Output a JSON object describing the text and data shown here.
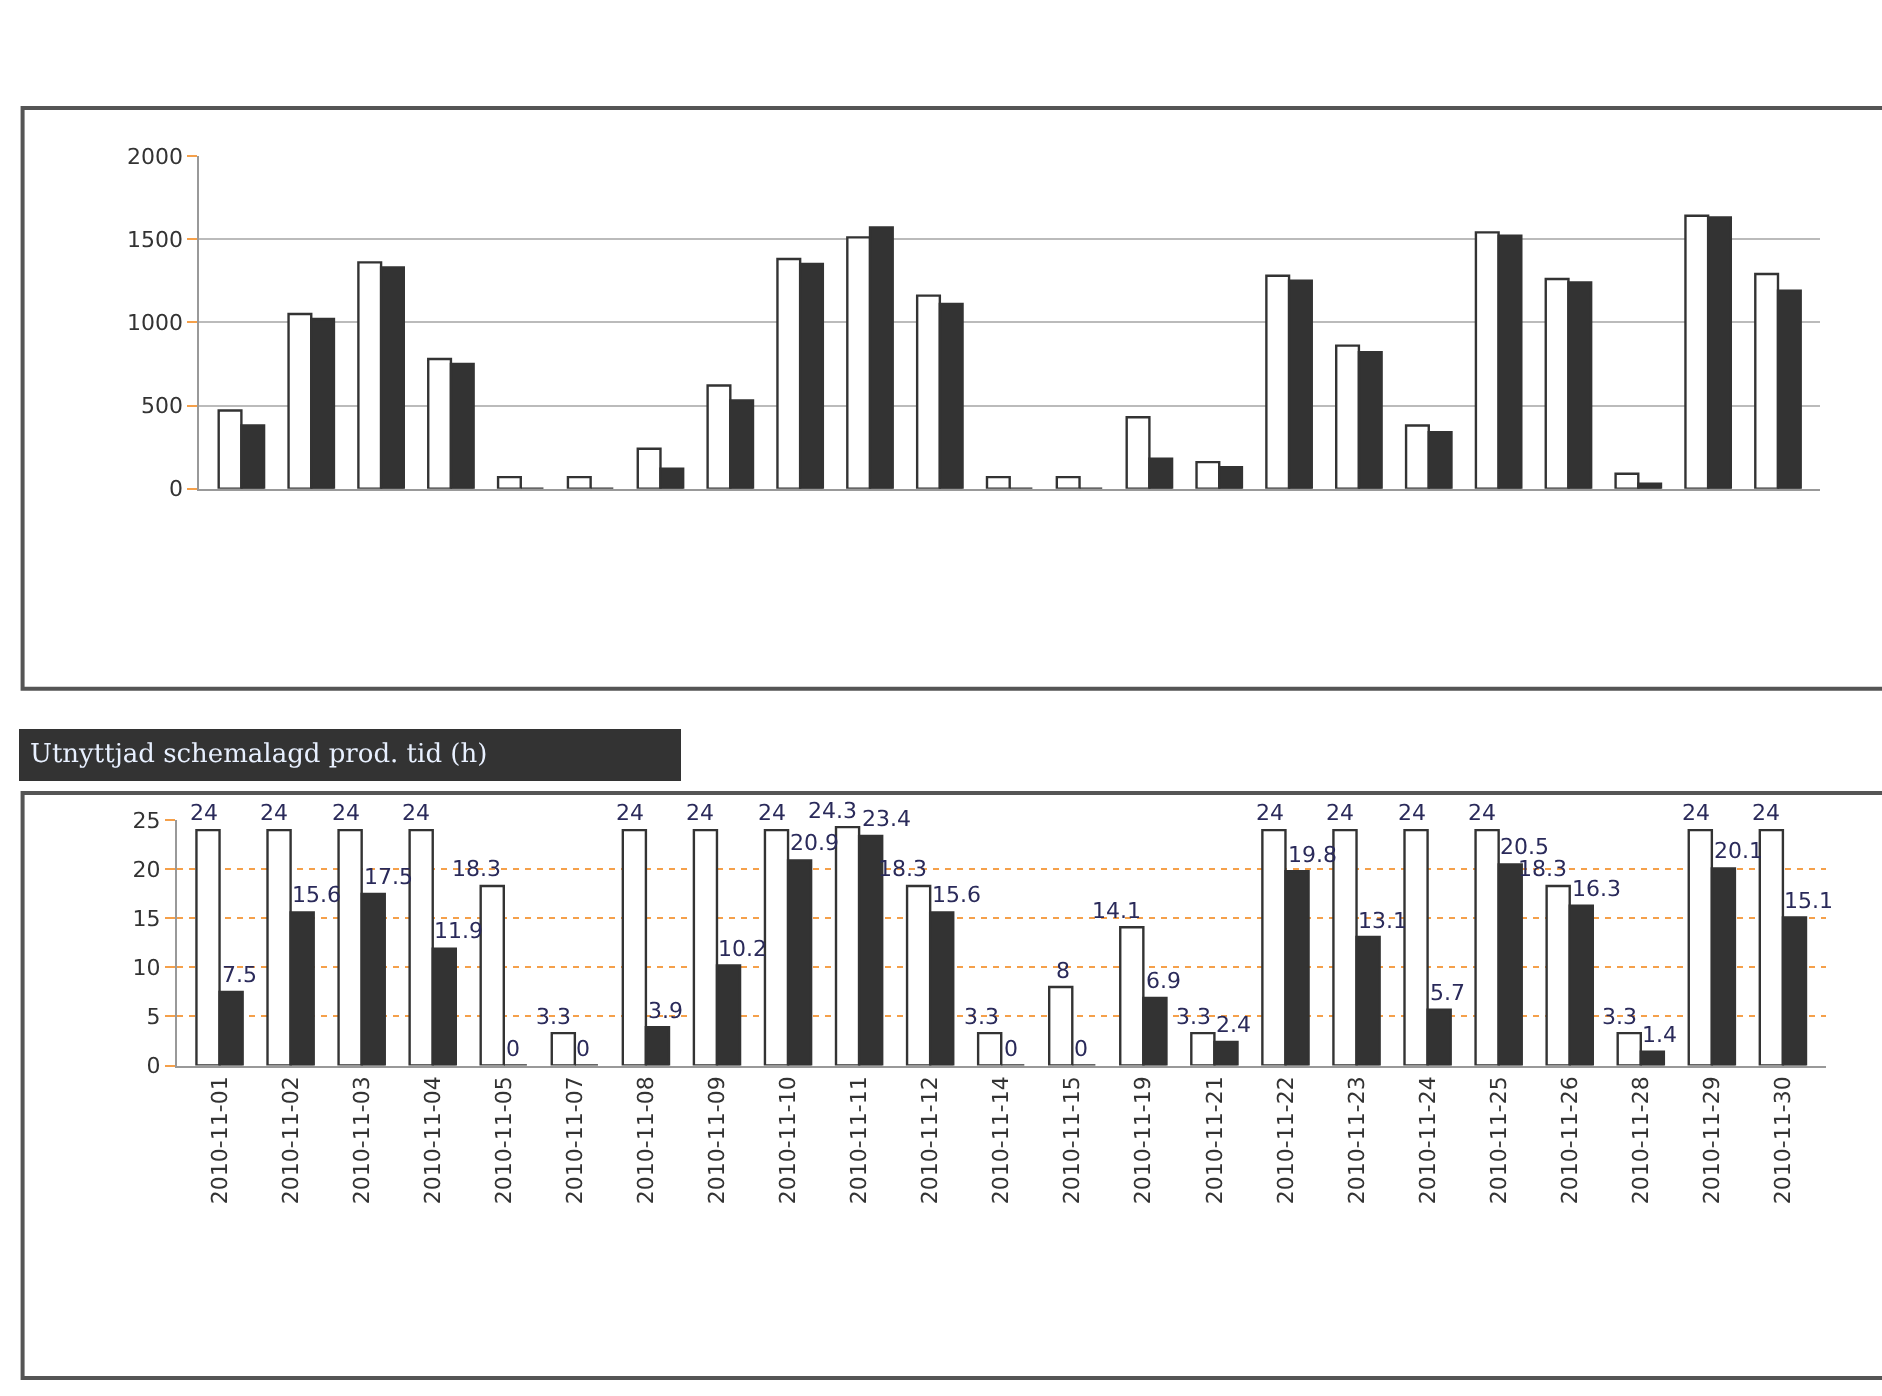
{
  "chart_data": [
    {
      "type": "bar",
      "categories": [
        null,
        null,
        null,
        null,
        null,
        null,
        null,
        null,
        null,
        null,
        null,
        null,
        null,
        null,
        null,
        null,
        null,
        null,
        null,
        null,
        null,
        null,
        null
      ],
      "series": [
        {
          "color": "#ffffff",
          "values": [
            470,
            1050,
            1360,
            780,
            70,
            70,
            240,
            620,
            1380,
            1510,
            1160,
            70,
            70,
            430,
            160,
            1280,
            860,
            380,
            1540,
            1260,
            90,
            1640,
            1290
          ]
        },
        {
          "color": "#333333",
          "values": [
            380,
            1020,
            1330,
            750,
            0,
            0,
            120,
            530,
            1350,
            1570,
            1110,
            0,
            0,
            180,
            130,
            1250,
            820,
            340,
            1520,
            1240,
            30,
            1630,
            1190
          ]
        }
      ],
      "ylim": [
        0,
        2000
      ],
      "yticks": [
        0,
        500,
        1000,
        1500,
        2000
      ],
      "grid": "y",
      "tick_labels": "y"
    },
    {
      "type": "bar",
      "title": "Utnyttjad schemalagd prod. tid (h)",
      "categories": [
        "2010-11-01",
        "2010-11-02",
        "2010-11-03",
        "2010-11-04",
        "2010-11-05",
        "2010-11-07",
        "2010-11-08",
        "2010-11-09",
        "2010-11-10",
        "2010-11-11",
        "2010-11-12",
        "2010-11-14",
        "2010-11-15",
        "2010-11-19",
        "2010-11-21",
        "2010-11-22",
        "2010-11-23",
        "2010-11-24",
        "2010-11-25",
        "2010-11-26",
        "2010-11-28",
        "2010-11-29",
        "2010-11-30"
      ],
      "series": [
        {
          "color": "#ffffff",
          "values": [
            24,
            24,
            24,
            24,
            18.3,
            3.3,
            24,
            24,
            24,
            24.3,
            18.3,
            3.3,
            8,
            14.1,
            3.3,
            24,
            24,
            24,
            24,
            18.3,
            3.3,
            24,
            24
          ]
        },
        {
          "color": "#333333",
          "values": [
            7.5,
            15.6,
            17.5,
            11.9,
            0,
            0,
            3.9,
            10.2,
            20.9,
            23.4,
            15.6,
            0,
            0,
            6.9,
            2.4,
            19.8,
            13.1,
            5.7,
            20.5,
            16.3,
            1.4,
            20.1,
            15.1
          ]
        }
      ],
      "ylim": [
        0,
        25
      ],
      "yticks": [
        0,
        5,
        10,
        15,
        20,
        25
      ],
      "grid": "y",
      "data_labels": true
    }
  ]
}
